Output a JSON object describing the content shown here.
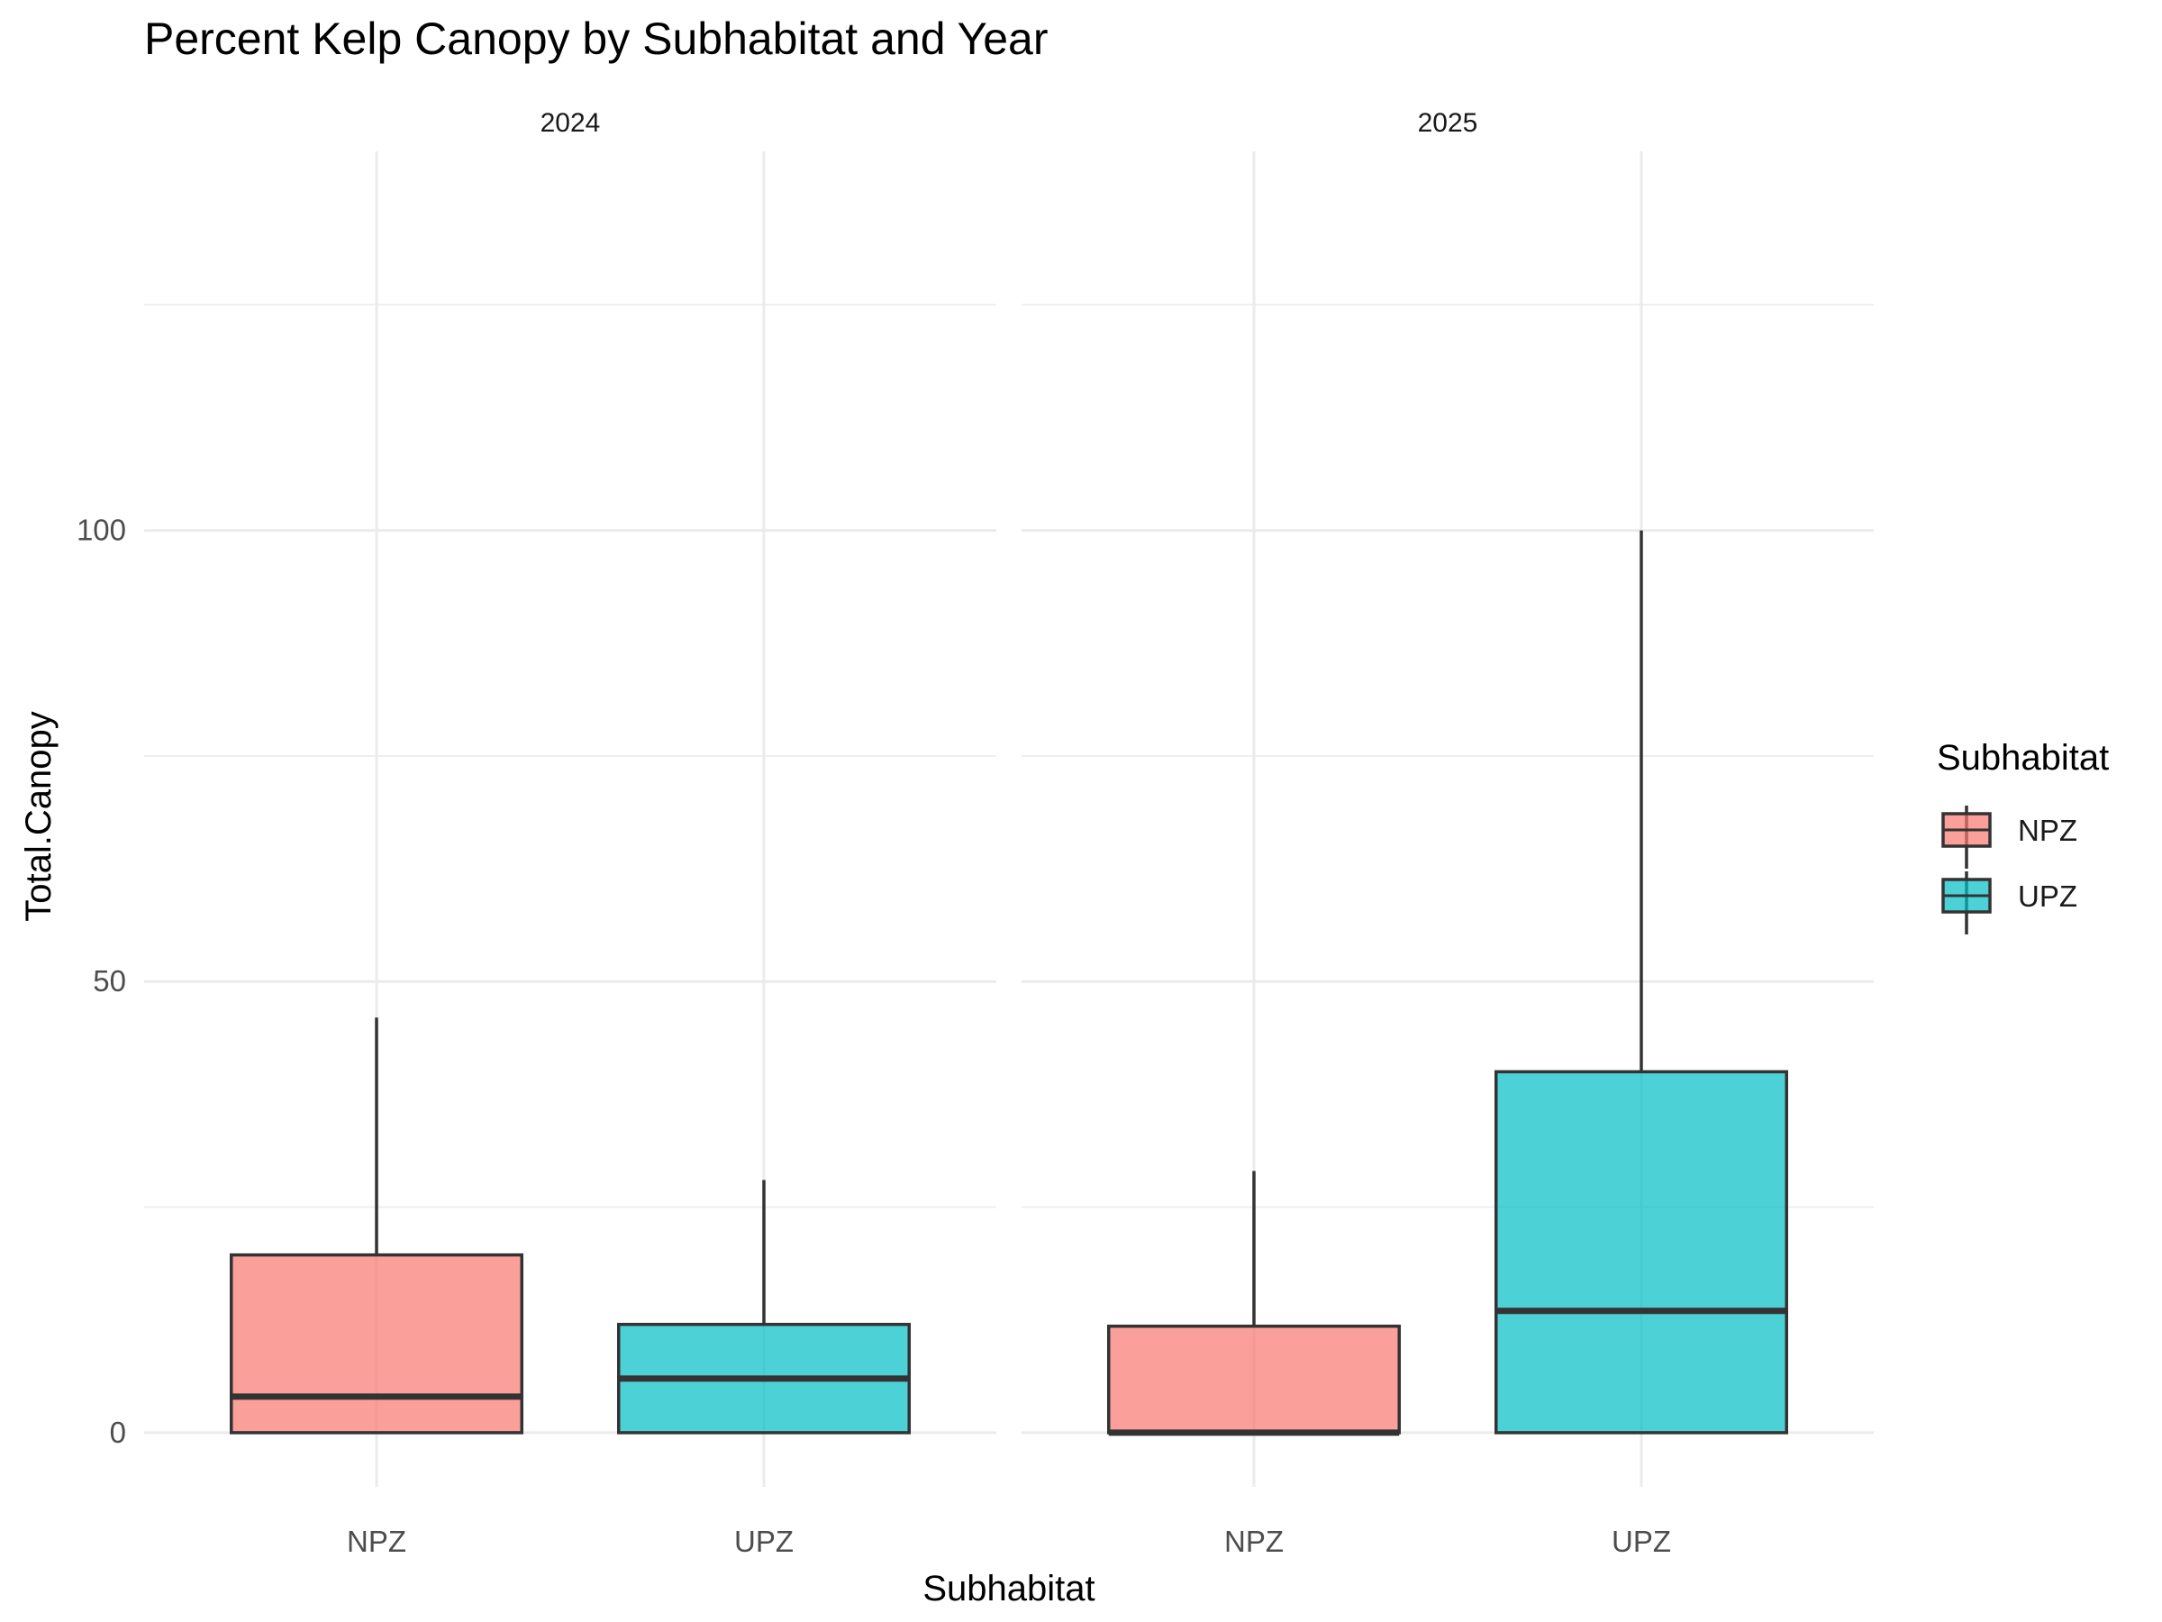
{
  "chart_data": {
    "type": "boxplot",
    "title": "Percent Kelp Canopy by Subhabitat and Year",
    "xlabel": "Subhabitat",
    "ylabel": "Total.Canopy",
    "ylim": [
      -6,
      142
    ],
    "y_ticks": [
      0,
      50,
      100
    ],
    "y_tick_labels": [
      "0",
      "50",
      "100"
    ],
    "y_minor_ticks": [
      25,
      75,
      125
    ],
    "grid": true,
    "categories": [
      "NPZ",
      "UPZ"
    ],
    "facets": [
      {
        "label": "2024",
        "boxes": [
          {
            "category": "NPZ",
            "lower_whisker": 0,
            "q1": 0,
            "median": 4,
            "q3": 19.7,
            "upper_whisker": 46
          },
          {
            "category": "UPZ",
            "lower_whisker": 0,
            "q1": 0,
            "median": 6,
            "q3": 12,
            "upper_whisker": 28
          }
        ]
      },
      {
        "label": "2025",
        "boxes": [
          {
            "category": "NPZ",
            "lower_whisker": 0,
            "q1": 0,
            "median": 0,
            "q3": 11.8,
            "upper_whisker": 29
          },
          {
            "category": "UPZ",
            "lower_whisker": 0,
            "q1": 0,
            "median": 13.5,
            "q3": 40,
            "upper_whisker": 100
          }
        ]
      }
    ],
    "legend": {
      "title": "Subhabitat",
      "position": "right",
      "entries": [
        {
          "label": "NPZ",
          "color": "#F8766D"
        },
        {
          "label": "UPZ",
          "color": "#00BFC4"
        }
      ]
    }
  }
}
